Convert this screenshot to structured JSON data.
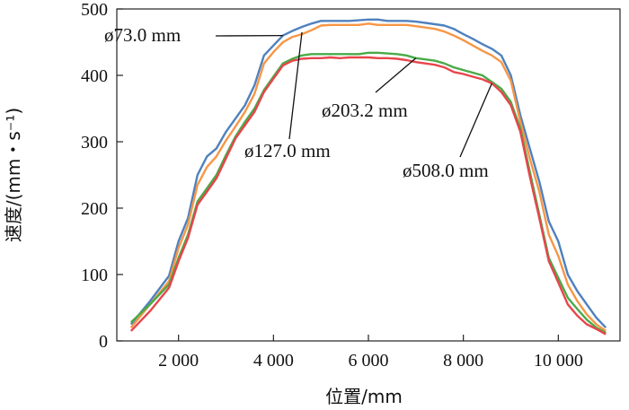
{
  "chart_data": {
    "type": "line",
    "xlabel": "位置/mm",
    "ylabel": "速度/(mm・s⁻¹)",
    "xlim": [
      700,
      11300
    ],
    "ylim": [
      0,
      500
    ],
    "xticks": [
      2000,
      4000,
      6000,
      8000,
      10000
    ],
    "xtick_labels": [
      "2 000",
      "4 000",
      "6 000",
      "8 000",
      "10 000"
    ],
    "yticks": [
      0,
      100,
      200,
      300,
      400,
      500
    ],
    "ytick_labels": [
      "0",
      "100",
      "200",
      "300",
      "400",
      "500"
    ],
    "grid": false,
    "series": [
      {
        "name": "ø73.0 mm",
        "color": "#4f81bd",
        "x": [
          1000,
          1400,
          1800,
          2000,
          2200,
          2400,
          2600,
          2800,
          3000,
          3200,
          3400,
          3600,
          3800,
          4000,
          4200,
          4400,
          4600,
          4800,
          5000,
          5200,
          5400,
          5600,
          5800,
          6000,
          6200,
          6400,
          6600,
          6800,
          7000,
          7200,
          7400,
          7600,
          7800,
          8000,
          8200,
          8400,
          8600,
          8800,
          9000,
          9200,
          9400,
          9600,
          9800,
          10000,
          10200,
          10400,
          10600,
          10800,
          11000
        ],
        "y": [
          25,
          60,
          98,
          150,
          185,
          250,
          278,
          290,
          315,
          335,
          355,
          385,
          430,
          445,
          460,
          467,
          473,
          478,
          482,
          482,
          482,
          482,
          483,
          484,
          484,
          482,
          482,
          482,
          481,
          479,
          477,
          475,
          470,
          462,
          455,
          447,
          440,
          430,
          400,
          340,
          290,
          240,
          180,
          150,
          100,
          75,
          55,
          35,
          20
        ]
      },
      {
        "name": "ø127.0 mm",
        "color": "#f79646",
        "x": [
          1000,
          1400,
          1800,
          2000,
          2200,
          2400,
          2600,
          2800,
          3000,
          3200,
          3400,
          3600,
          3800,
          4000,
          4200,
          4400,
          4600,
          4800,
          5000,
          5200,
          5400,
          5600,
          5800,
          6000,
          6200,
          6400,
          6600,
          6800,
          7000,
          7200,
          7400,
          7600,
          7800,
          8000,
          8200,
          8400,
          8600,
          8800,
          9000,
          9200,
          9400,
          9600,
          9800,
          10000,
          10200,
          10400,
          10600,
          10800,
          11000
        ],
        "y": [
          20,
          55,
          90,
          140,
          175,
          235,
          262,
          278,
          302,
          323,
          345,
          372,
          418,
          435,
          450,
          458,
          462,
          468,
          475,
          476,
          476,
          476,
          476,
          478,
          476,
          476,
          476,
          476,
          474,
          472,
          470,
          466,
          460,
          453,
          445,
          437,
          430,
          420,
          392,
          330,
          275,
          225,
          160,
          128,
          85,
          60,
          40,
          25,
          15
        ]
      },
      {
        "name": "ø203.2 mm",
        "color": "#4aaa47",
        "x": [
          1000,
          1400,
          1800,
          2000,
          2200,
          2400,
          2600,
          2800,
          3000,
          3200,
          3400,
          3600,
          3800,
          4000,
          4200,
          4400,
          4600,
          4800,
          5000,
          5200,
          5400,
          5600,
          5800,
          6000,
          6200,
          6400,
          6600,
          6800,
          7000,
          7200,
          7400,
          7600,
          7800,
          8000,
          8200,
          8400,
          8600,
          8800,
          9000,
          9200,
          9400,
          9600,
          9800,
          10000,
          10200,
          10400,
          10600,
          10800,
          11000
        ],
        "y": [
          28,
          55,
          85,
          125,
          160,
          210,
          230,
          250,
          280,
          308,
          330,
          350,
          378,
          398,
          418,
          425,
          430,
          432,
          432,
          432,
          432,
          432,
          432,
          434,
          434,
          433,
          432,
          430,
          426,
          424,
          422,
          418,
          412,
          408,
          404,
          400,
          390,
          380,
          360,
          320,
          255,
          190,
          125,
          95,
          65,
          48,
          32,
          20,
          12
        ]
      },
      {
        "name": "ø508.0 mm",
        "color": "#e8454c",
        "x": [
          1000,
          1400,
          1800,
          2000,
          2200,
          2400,
          2600,
          2800,
          3000,
          3200,
          3400,
          3600,
          3800,
          4000,
          4200,
          4400,
          4600,
          4800,
          5000,
          5200,
          5400,
          5600,
          5800,
          6000,
          6200,
          6400,
          6600,
          6800,
          7000,
          7200,
          7400,
          7600,
          7800,
          8000,
          8200,
          8400,
          8600,
          8800,
          9000,
          9200,
          9400,
          9600,
          9800,
          10000,
          10200,
          10400,
          10600,
          10800,
          11000
        ],
        "y": [
          15,
          45,
          80,
          120,
          155,
          205,
          225,
          245,
          275,
          305,
          325,
          345,
          375,
          395,
          415,
          422,
          425,
          426,
          426,
          427,
          426,
          427,
          427,
          427,
          426,
          426,
          425,
          423,
          420,
          418,
          416,
          412,
          405,
          402,
          398,
          394,
          388,
          375,
          355,
          315,
          248,
          185,
          120,
          88,
          55,
          38,
          25,
          18,
          10
        ]
      }
    ],
    "annotations": [
      {
        "text": "ø73.0 mm",
        "series": 0,
        "x": 4200,
        "y": 460
      },
      {
        "text": "ø127.0 mm",
        "series": 1,
        "x": 4600,
        "y": 465
      },
      {
        "text": "ø203.2 mm",
        "series": 2,
        "x": 7000,
        "y": 426
      },
      {
        "text": "ø508.0 mm",
        "series": 3,
        "x": 8600,
        "y": 388
      }
    ]
  }
}
